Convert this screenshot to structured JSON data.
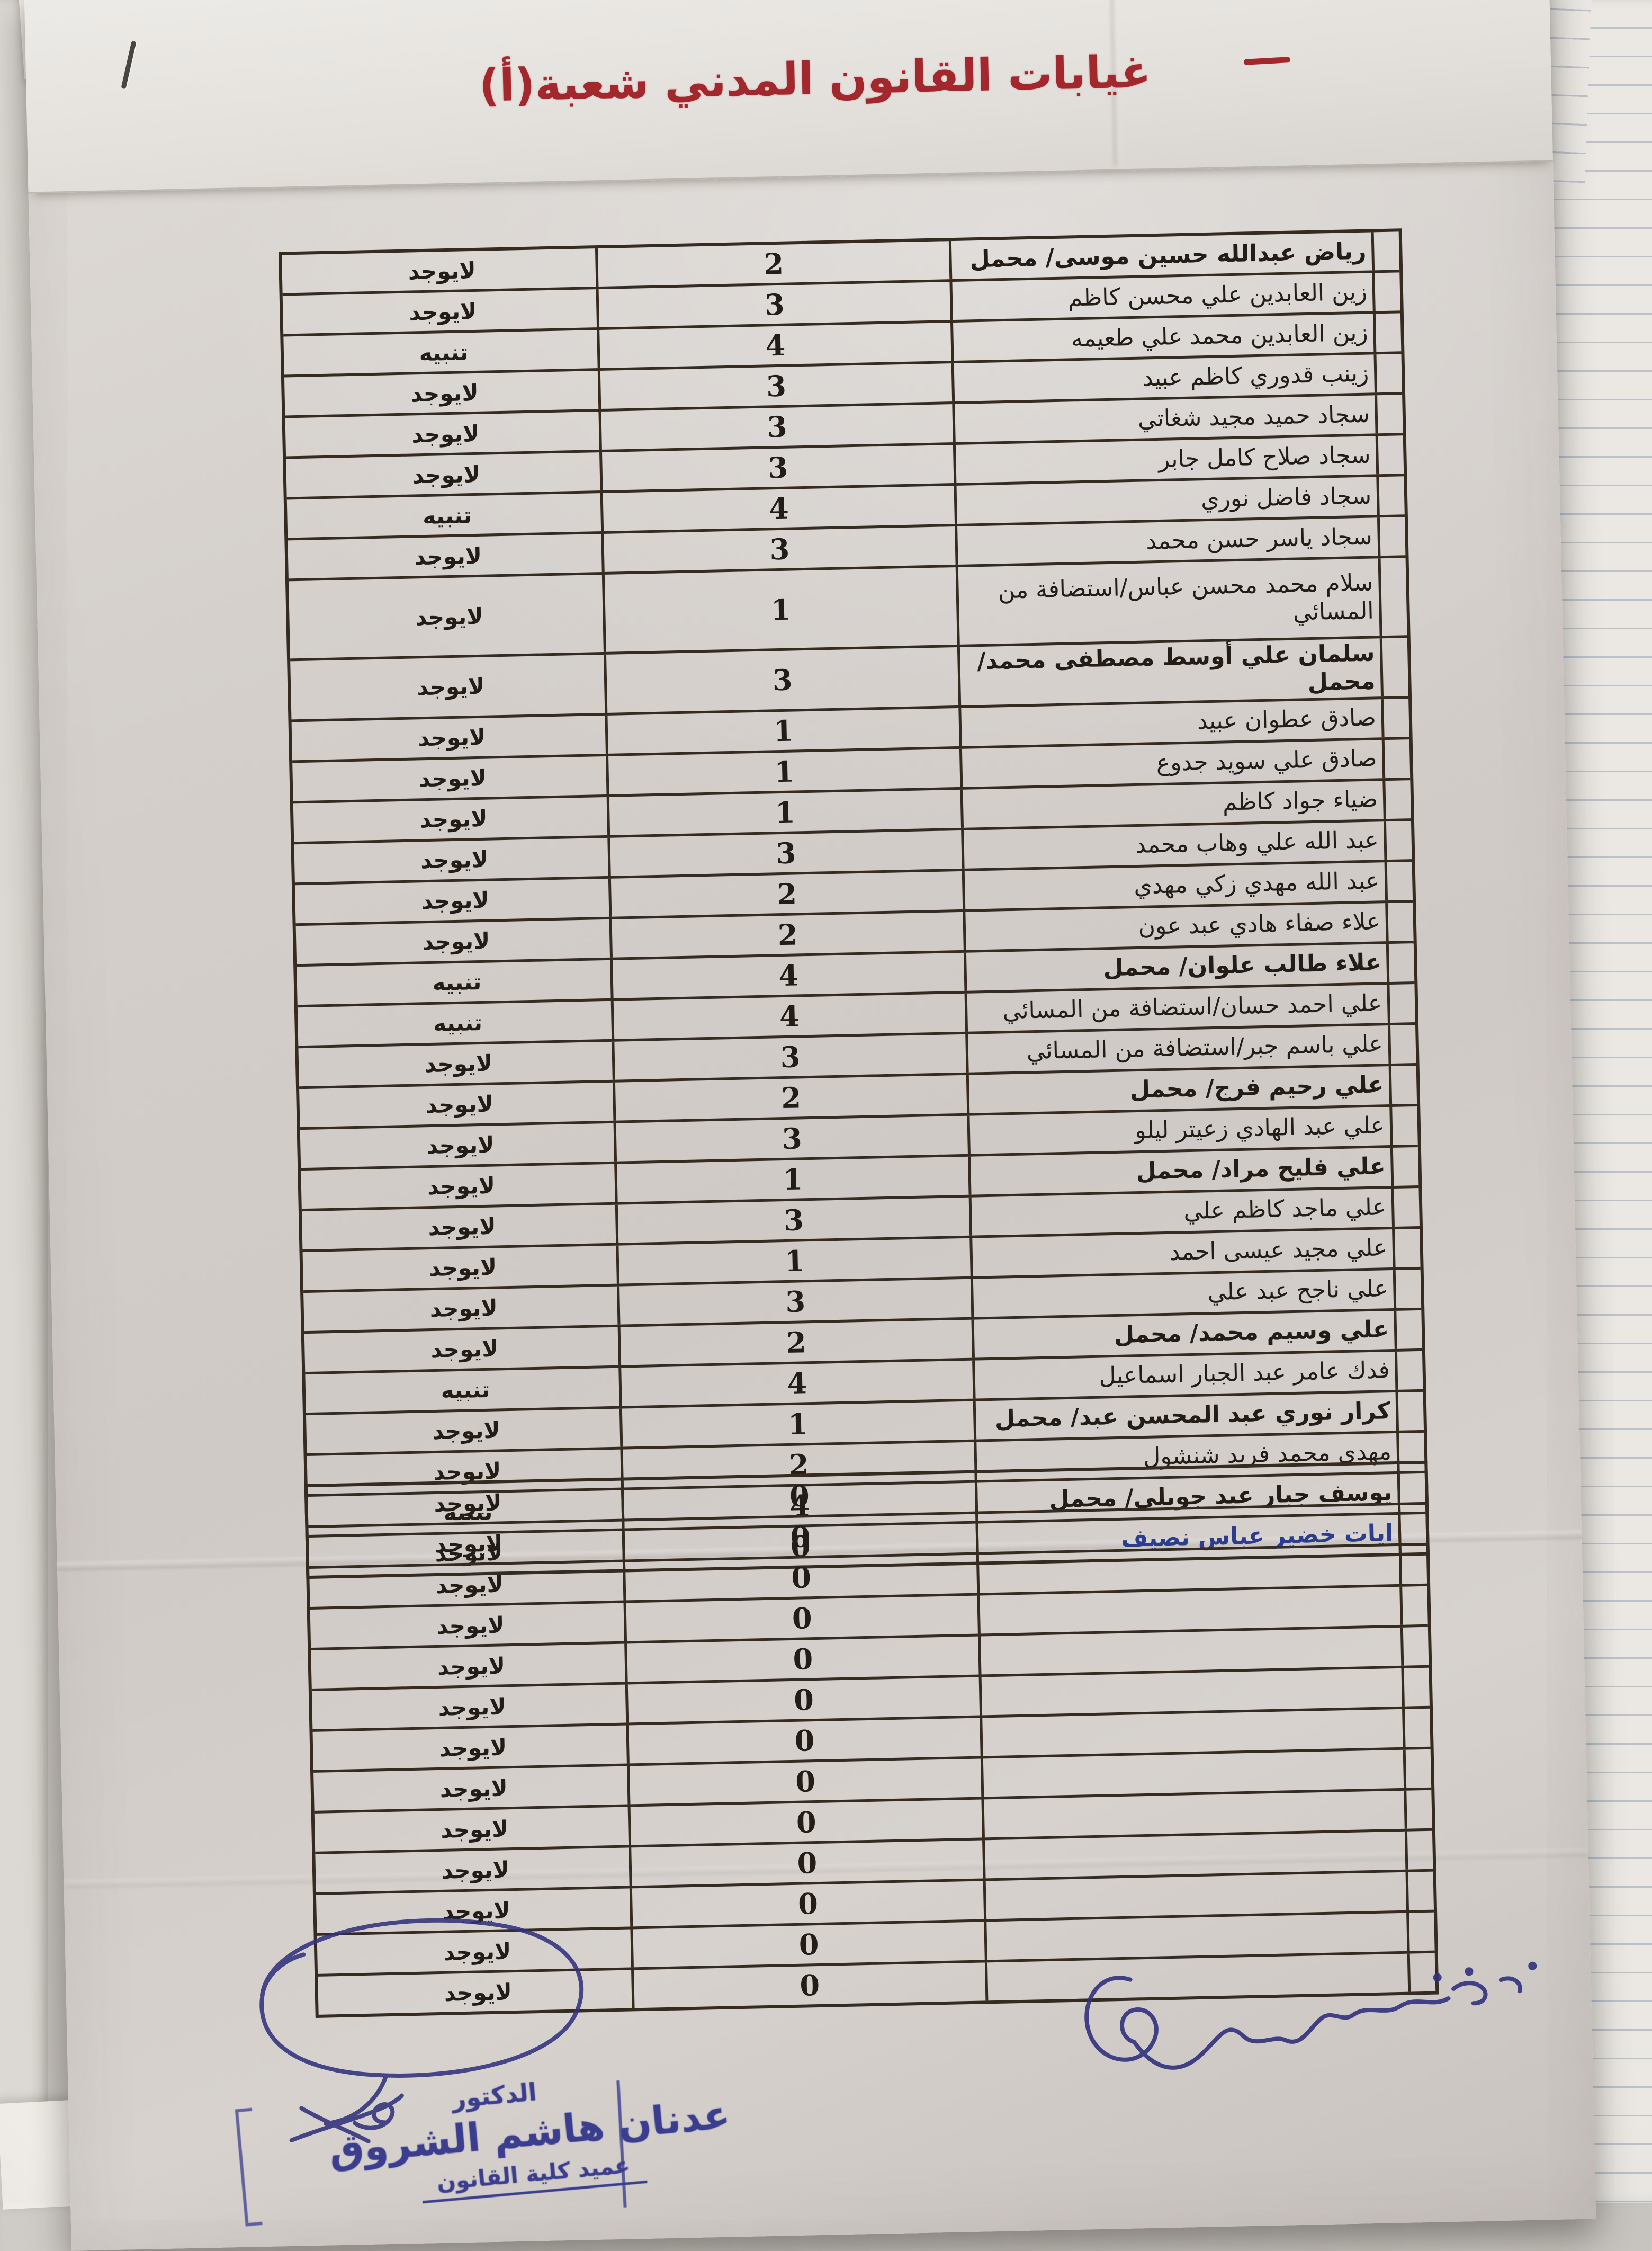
{
  "page": {
    "title": "غيابات القانون المدني شعبة(أ)"
  },
  "status_values": [
    "لايوجد",
    "تنبيه"
  ],
  "attendance_table": {
    "rows": [
      {
        "name": "رياض عبدالله حسين موسى/ محمل",
        "absences": "2",
        "status": "لايوجد",
        "style": "bold"
      },
      {
        "name": "زين العابدين علي محسن كاظم",
        "absences": "3",
        "status": "لايوجد",
        "style": "normal"
      },
      {
        "name": "زين العابدين محمد علي طعيمه",
        "absences": "4",
        "status": "تنبيه",
        "style": "normal"
      },
      {
        "name": "زينب قدوري كاظم عبيد",
        "absences": "3",
        "status": "لايوجد",
        "style": "normal"
      },
      {
        "name": "سجاد حميد مجيد شغاتي",
        "absences": "3",
        "status": "لايوجد",
        "style": "normal"
      },
      {
        "name": "سجاد صلاح كامل جابر",
        "absences": "3",
        "status": "لايوجد",
        "style": "normal"
      },
      {
        "name": "سجاد فاضل نوري",
        "absences": "4",
        "status": "تنبيه",
        "style": "normal"
      },
      {
        "name": "سجاد ياسر حسن محمد",
        "absences": "3",
        "status": "لايوجد",
        "style": "normal"
      },
      {
        "name": "سلام محمد محسن عباس/استضافة من المسائي",
        "absences": "1",
        "status": "لايوجد",
        "style": "normal",
        "tall": true
      },
      {
        "name": "سلمان علي أوسط مصطفى محمد/ محمل",
        "absences": "3",
        "status": "لايوجد",
        "style": "bold"
      },
      {
        "name": "صادق عطوان عبيد",
        "absences": "1",
        "status": "لايوجد",
        "style": "normal"
      },
      {
        "name": "صادق علي سويد جدوع",
        "absences": "1",
        "status": "لايوجد",
        "style": "normal"
      },
      {
        "name": "ضياء جواد كاظم",
        "absences": "1",
        "status": "لايوجد",
        "style": "normal"
      },
      {
        "name": "عبد الله علي وهاب محمد",
        "absences": "3",
        "status": "لايوجد",
        "style": "normal"
      },
      {
        "name": "عبد الله مهدي زكي مهدي",
        "absences": "2",
        "status": "لايوجد",
        "style": "normal"
      },
      {
        "name": "علاء صفاء هادي عبد عون",
        "absences": "2",
        "status": "لايوجد",
        "style": "normal"
      },
      {
        "name": "علاء طالب علوان/ محمل",
        "absences": "4",
        "status": "تنبيه",
        "style": "bold"
      },
      {
        "name": "علي احمد حسان/استضافة من المسائي",
        "absences": "4",
        "status": "تنبيه",
        "style": "normal"
      },
      {
        "name": "علي باسم جبر/استضافة من المسائي",
        "absences": "3",
        "status": "لايوجد",
        "style": "normal"
      },
      {
        "name": "علي رحيم فرج/ محمل",
        "absences": "2",
        "status": "لايوجد",
        "style": "bold"
      },
      {
        "name": "علي عبد الهادي زعيتر ليلو",
        "absences": "3",
        "status": "لايوجد",
        "style": "normal"
      },
      {
        "name": "علي فليح مراد/ محمل",
        "absences": "1",
        "status": "لايوجد",
        "style": "bold"
      },
      {
        "name": "علي ماجد كاظم علي",
        "absences": "3",
        "status": "لايوجد",
        "style": "normal"
      },
      {
        "name": "علي مجيد عيسى احمد",
        "absences": "1",
        "status": "لايوجد",
        "style": "normal"
      },
      {
        "name": "علي ناجح عبد علي",
        "absences": "3",
        "status": "لايوجد",
        "style": "normal"
      },
      {
        "name": "علي وسيم محمد/ محمل",
        "absences": "2",
        "status": "لايوجد",
        "style": "bold"
      },
      {
        "name": "فدك عامر عبد الجبار اسماعيل",
        "absences": "4",
        "status": "تنبيه",
        "style": "normal"
      },
      {
        "name": "كرار نوري عبد المحسن عبد/ محمل",
        "absences": "1",
        "status": "لايوجد",
        "style": "bold"
      },
      {
        "name": "مهدي محمد فريد شنشول",
        "absences": "2",
        "status": "لايوجد",
        "style": "normal"
      },
      {
        "name": "يوسف جبار عبد جويلي/ محمل",
        "absences": "4",
        "status": "تنبيه",
        "style": "bold"
      },
      {
        "name": "ايات خضير عباس نصيف",
        "absences": "0",
        "status": "لايوجد",
        "style": "blue"
      }
    ]
  },
  "empty_table": {
    "rows": [
      {
        "name": "",
        "absences": "0",
        "status": "لايوجد",
        "style": "normal"
      },
      {
        "name": "",
        "absences": "0",
        "status": "لايوجد",
        "style": "normal"
      },
      {
        "name": "",
        "absences": "0",
        "status": "لايوجد",
        "style": "normal"
      },
      {
        "name": "",
        "absences": "0",
        "status": "لايوجد",
        "style": "normal"
      },
      {
        "name": "",
        "absences": "0",
        "status": "لايوجد",
        "style": "normal"
      },
      {
        "name": "",
        "absences": "0",
        "status": "لايوجد",
        "style": "normal"
      },
      {
        "name": "",
        "absences": "0",
        "status": "لايوجد",
        "style": "normal"
      },
      {
        "name": "",
        "absences": "0",
        "status": "لايوجد",
        "style": "normal"
      },
      {
        "name": "",
        "absences": "0",
        "status": "لايوجد",
        "style": "normal"
      },
      {
        "name": "",
        "absences": "0",
        "status": "لايوجد",
        "style": "normal"
      },
      {
        "name": "",
        "absences": "0",
        "status": "لايوجد",
        "style": "normal"
      },
      {
        "name": "",
        "absences": "0",
        "status": "لايوجد",
        "style": "normal"
      },
      {
        "name": "",
        "absences": "0",
        "status": "لايوجد",
        "style": "normal"
      }
    ]
  },
  "stamp": {
    "line1": "الدكتور",
    "line2": "عدنان هاشم الشروق",
    "line3": "عميد كلية القانون"
  },
  "colors": {
    "title_red": "#a2282e",
    "ink_black": "#241d17",
    "entry_blue": "#2c3d8f",
    "stamp_blue": "#3b3e8e",
    "pen_blue": "#31317d"
  }
}
